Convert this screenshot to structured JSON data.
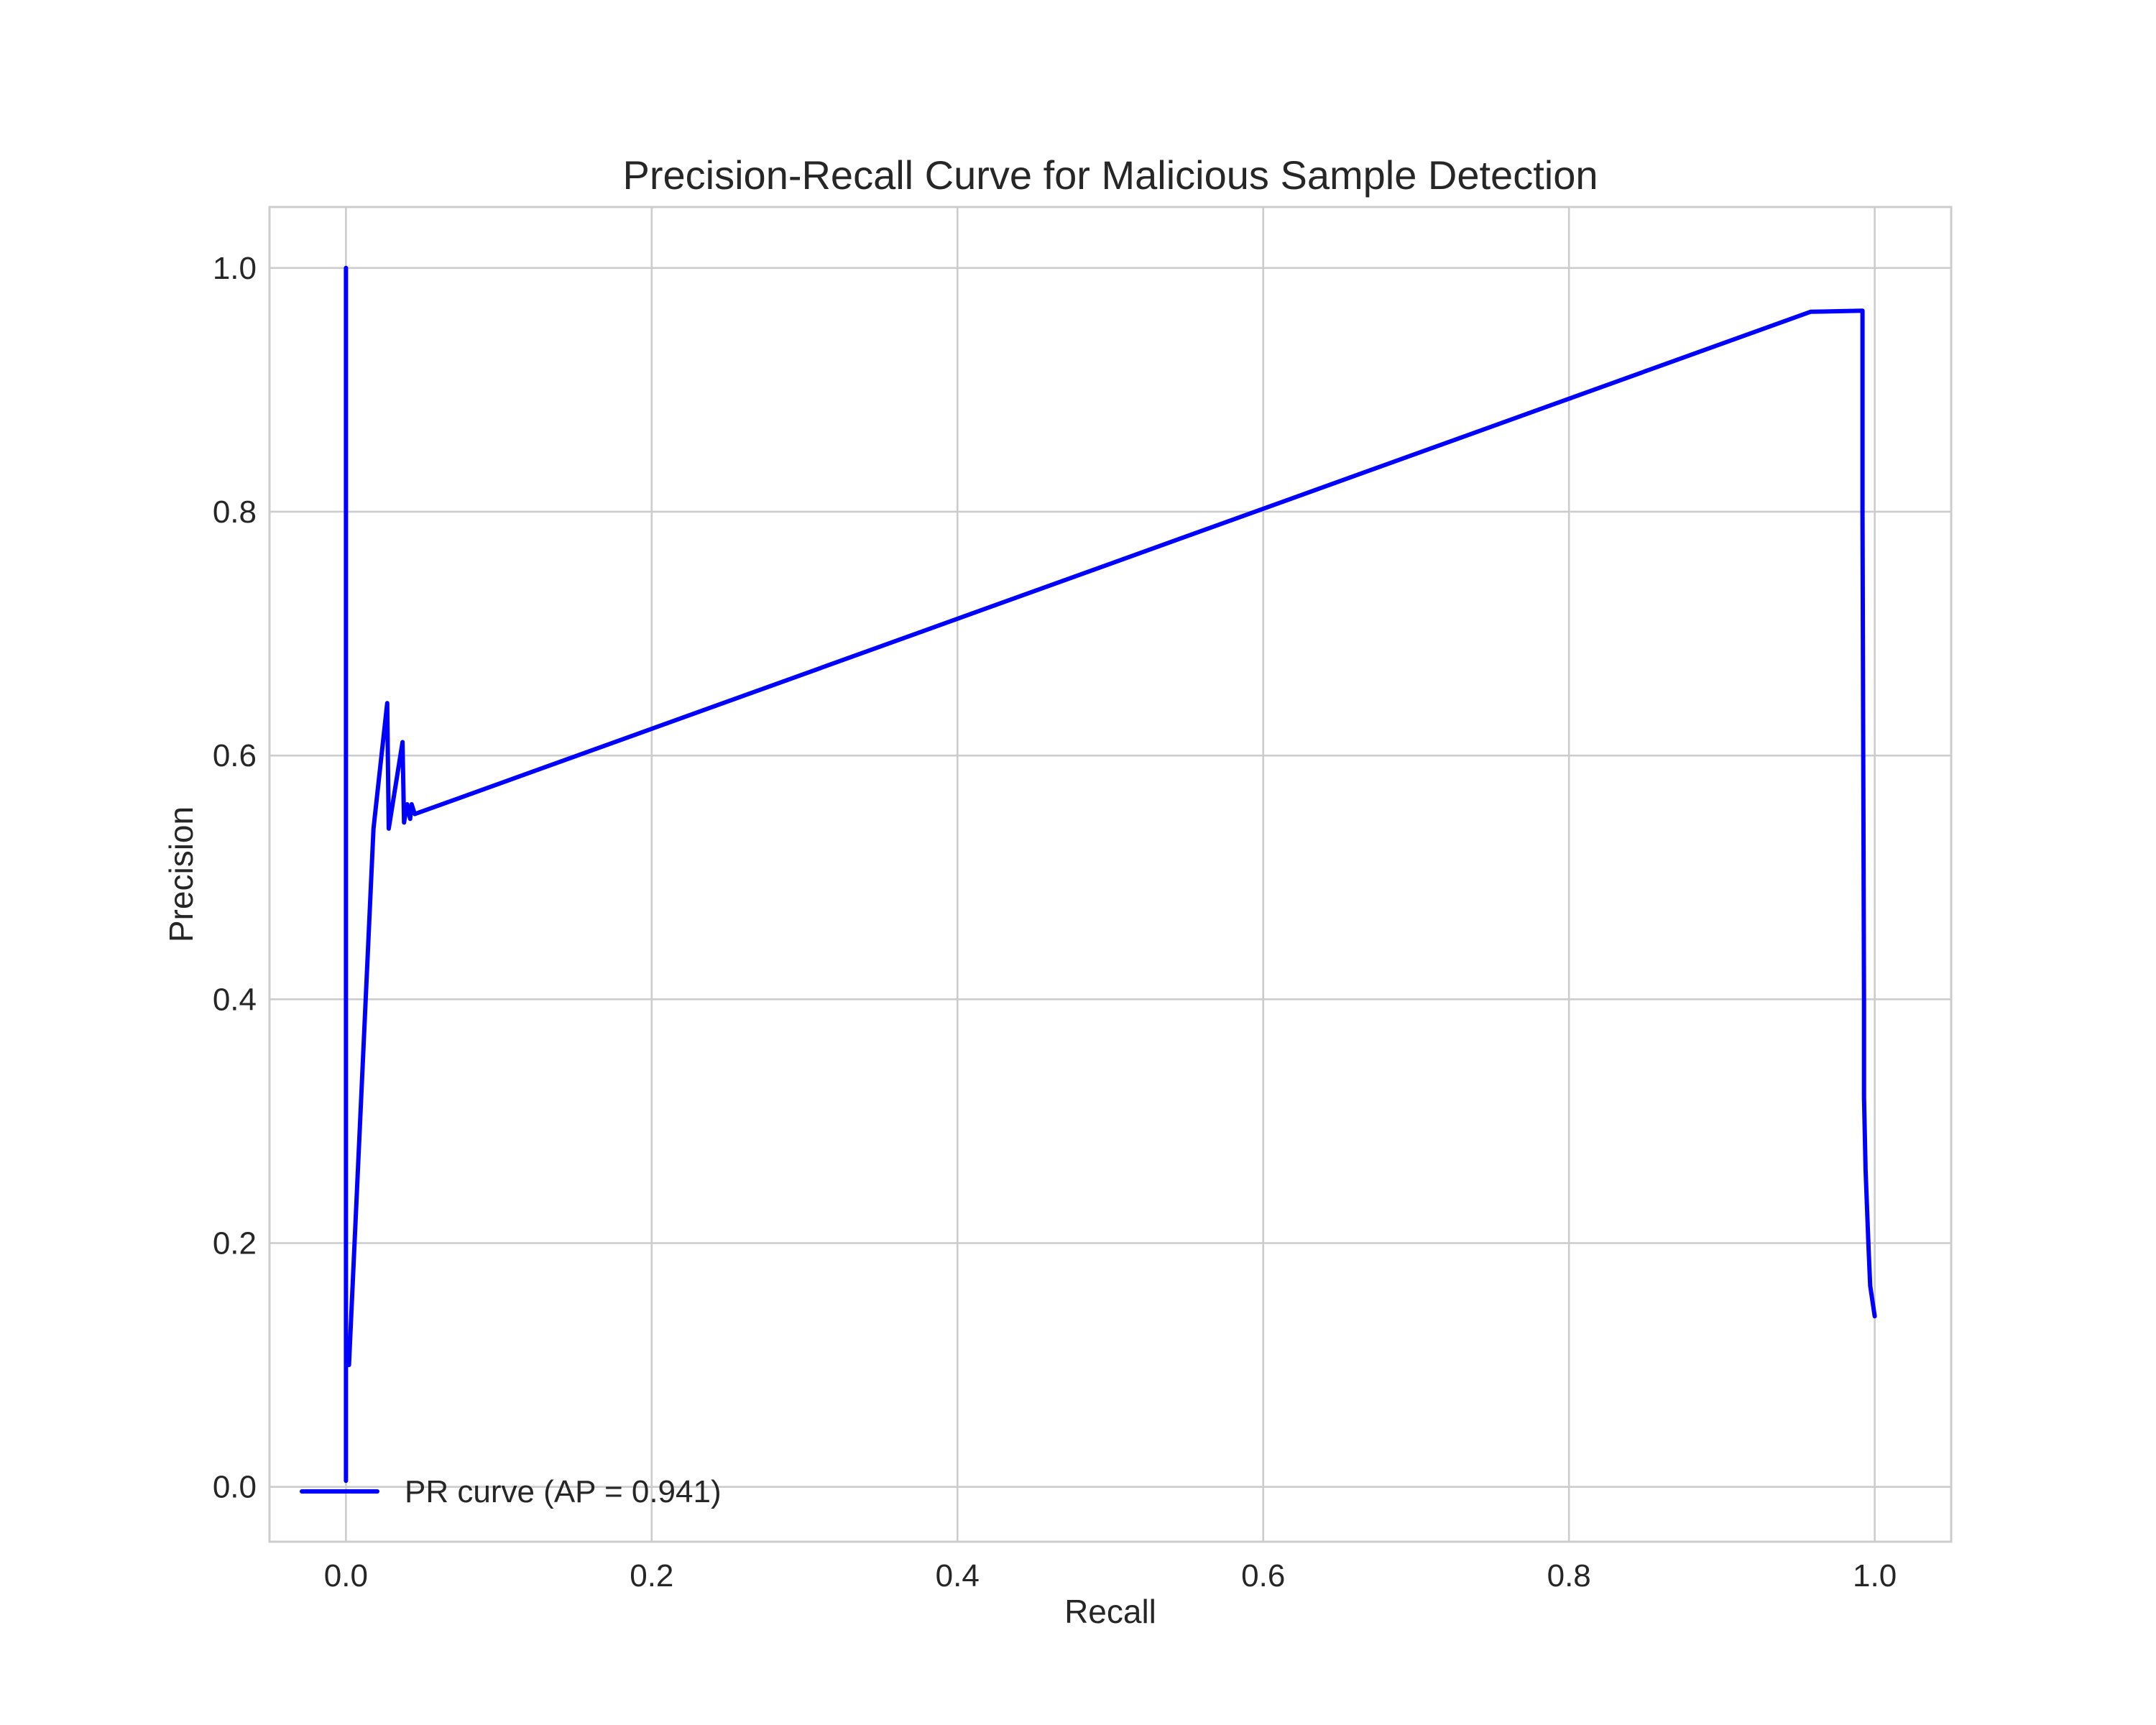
{
  "chart_data": {
    "type": "line",
    "title": "Precision-Recall Curve for Malicious Sample Detection",
    "xlabel": "Recall",
    "ylabel": "Precision",
    "xlim": [
      -0.05,
      1.05
    ],
    "ylim": [
      -0.045,
      1.05
    ],
    "grid": true,
    "x_ticks": [
      0.0,
      0.2,
      0.4,
      0.6,
      0.8,
      1.0
    ],
    "x_tick_labels": [
      "0.0",
      "0.2",
      "0.4",
      "0.6",
      "0.8",
      "1.0"
    ],
    "y_ticks": [
      0.0,
      0.2,
      0.4,
      0.6,
      0.8,
      1.0
    ],
    "y_tick_labels": [
      "0.0",
      "0.2",
      "0.4",
      "0.6",
      "0.8",
      "1.0"
    ],
    "legend_position": "lower-left",
    "series": [
      {
        "name": "PR curve (AP = 0.941)",
        "color": "#0000ff",
        "x": [
          0.0,
          0.0,
          0.0,
          0.002,
          0.002,
          0.018,
          0.027,
          0.028,
          0.037,
          0.038,
          0.04,
          0.042,
          0.043,
          0.045,
          0.958,
          0.992,
          0.992,
          0.993,
          0.993,
          0.994,
          0.996,
          0.997,
          1.0
        ],
        "y": [
          1.0,
          0.005,
          0.1,
          0.1,
          0.1,
          0.54,
          0.643,
          0.54,
          0.611,
          0.545,
          0.56,
          0.548,
          0.56,
          0.552,
          0.964,
          0.965,
          0.8,
          0.4,
          0.32,
          0.26,
          0.195,
          0.165,
          0.14
        ]
      }
    ]
  }
}
